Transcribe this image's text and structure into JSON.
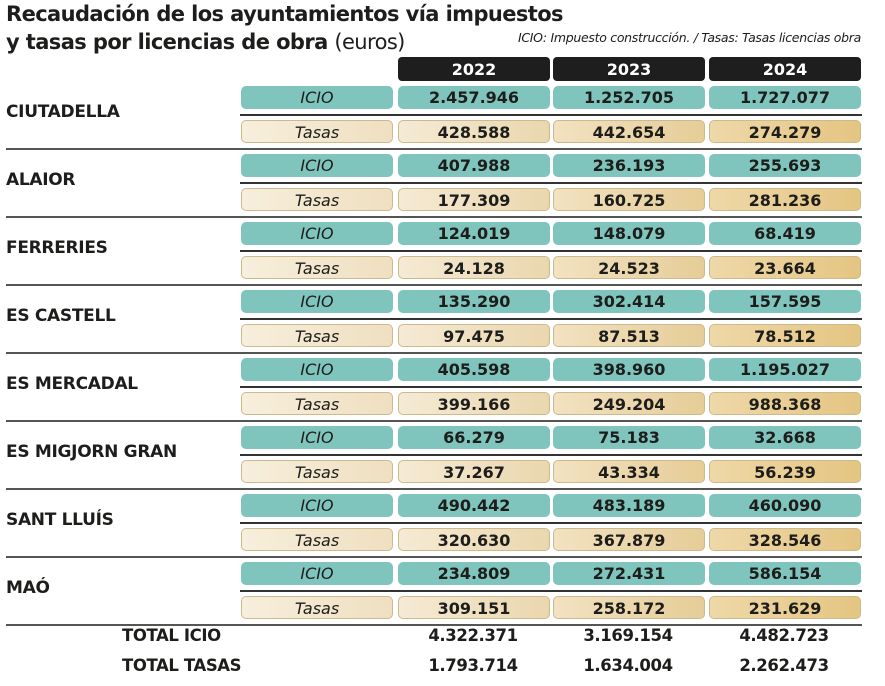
{
  "title_bold": "Recaudación de los ayuntamientos vía impuestos",
  "title_bold_line2": "y tasas por licencias de obra",
  "title_unit": "(euros)",
  "legend_note": "ICIO: Impuesto construcción. / Tasas: Tasas licencias obra",
  "colors": {
    "icio": "#7fc4bd",
    "tasas": "#eed9ac",
    "header": "#1e1e1e"
  },
  "chart_data": {
    "type": "table",
    "title": "Recaudación de los ayuntamientos vía impuestos y tasas por licencias de obra (euros)",
    "columns": [
      "2022",
      "2023",
      "2024"
    ],
    "row_types": [
      "ICIO",
      "Tasas"
    ],
    "municipalities": [
      {
        "name": "CIUTADELLA",
        "icio": [
          "2.457.946",
          "1.252.705",
          "1.727.077"
        ],
        "tasas": [
          "428.588",
          "442.654",
          "274.279"
        ]
      },
      {
        "name": "ALAIOR",
        "icio": [
          "407.988",
          "236.193",
          "255.693"
        ],
        "tasas": [
          "177.309",
          "160.725",
          "281.236"
        ]
      },
      {
        "name": "FERRERIES",
        "icio": [
          "124.019",
          "148.079",
          "68.419"
        ],
        "tasas": [
          "24.128",
          "24.523",
          "23.664"
        ]
      },
      {
        "name": "ES CASTELL",
        "icio": [
          "135.290",
          "302.414",
          "157.595"
        ],
        "tasas": [
          "97.475",
          "87.513",
          "78.512"
        ]
      },
      {
        "name": "ES MERCADAL",
        "icio": [
          "405.598",
          "398.960",
          "1.195.027"
        ],
        "tasas": [
          "399.166",
          "249.204",
          "988.368"
        ]
      },
      {
        "name": "ES MIGJORN GRAN",
        "icio": [
          "66.279",
          "75.183",
          "32.668"
        ],
        "tasas": [
          "37.267",
          "43.334",
          "56.239"
        ]
      },
      {
        "name": "SANT LLUÍS",
        "icio": [
          "490.442",
          "483.189",
          "460.090"
        ],
        "tasas": [
          "320.630",
          "367.879",
          "328.546"
        ]
      },
      {
        "name": "MAÓ",
        "icio": [
          "234.809",
          "272.431",
          "586.154"
        ],
        "tasas": [
          "309.151",
          "258.172",
          "231.629"
        ]
      }
    ],
    "totals": [
      {
        "label": "TOTAL ICIO",
        "values": [
          "4.322.371",
          "3.169.154",
          "4.482.723"
        ]
      },
      {
        "label": "TOTAL TASAS",
        "values": [
          "1.793.714",
          "1.634.004",
          "2.262.473"
        ]
      }
    ]
  }
}
